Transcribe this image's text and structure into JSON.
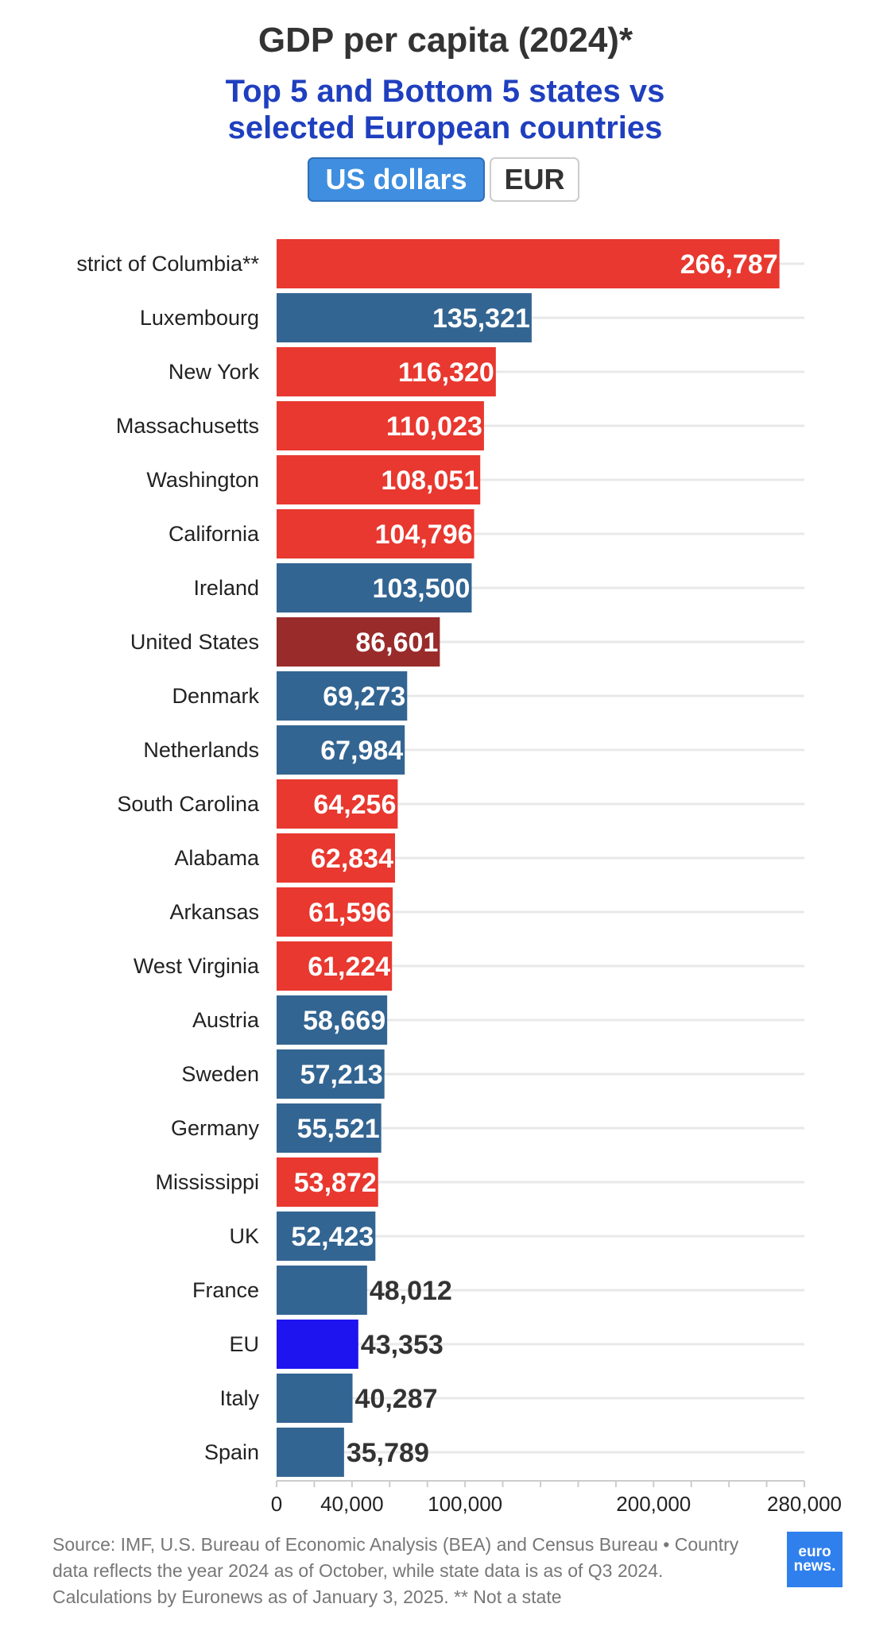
{
  "header": {
    "title": "GDP per capita (2024)*",
    "subtitle_line1": "Top 5 and Bottom 5 states vs",
    "subtitle_line2": "selected European countries",
    "toggle_active": "US dollars",
    "toggle_inactive": "EUR"
  },
  "colors": {
    "us_state": "#e8382f",
    "country": "#336592",
    "united_states": "#992b2b",
    "eu": "#1e14f0",
    "subtitle": "#1f3fbf"
  },
  "chart_data": {
    "type": "bar",
    "orientation": "horizontal",
    "title": "GDP per capita (2024)*",
    "subtitle": "Top 5 and Bottom 5 states vs selected European countries",
    "xlim": [
      0,
      280000
    ],
    "xticks": [
      "0",
      "40,000",
      "100,000",
      "200,000",
      "280,000"
    ],
    "xtick_values": [
      0,
      40000,
      100000,
      200000,
      280000
    ],
    "grid": true,
    "categories": [
      "strict of Columbia**",
      "Luxembourg",
      "New York",
      "Massachusetts",
      "Washington",
      "California",
      "Ireland",
      "United States",
      "Denmark",
      "Netherlands",
      "South Carolina",
      "Alabama",
      "Arkansas",
      "West Virginia",
      "Austria",
      "Sweden",
      "Germany",
      "Mississippi",
      "UK",
      "France",
      "EU",
      "Italy",
      "Spain"
    ],
    "values": [
      266787,
      135321,
      116320,
      110023,
      108051,
      104796,
      103500,
      86601,
      69273,
      67984,
      64256,
      62834,
      61596,
      61224,
      58669,
      57213,
      55521,
      53872,
      52423,
      48012,
      43353,
      40287,
      35789
    ],
    "labels": [
      "266,787",
      "135,321",
      "116,320",
      "110,023",
      "108,051",
      "104,796",
      "103,500",
      "86,601",
      "69,273",
      "67,984",
      "64,256",
      "62,834",
      "61,596",
      "61,224",
      "58,669",
      "57,213",
      "55,521",
      "53,872",
      "52,423",
      "48,012",
      "43,353",
      "40,287",
      "35,789"
    ],
    "groups": [
      "state",
      "country",
      "state",
      "state",
      "state",
      "state",
      "country",
      "us",
      "country",
      "country",
      "state",
      "state",
      "state",
      "state",
      "country",
      "country",
      "country",
      "state",
      "country",
      "country",
      "eu",
      "country",
      "country"
    ]
  },
  "footer": {
    "source_line1": "Source: IMF, U.S. Bureau of Economic Analysis (BEA) and Census Bureau • Country",
    "source_line2": "data reflects the year 2024 as of October, while state data is as of Q3 2024.",
    "source_line3": "Calculations by Euronews as of January 3, 2025. ** Not a state",
    "logo_line1": "euro",
    "logo_line2": "news."
  }
}
